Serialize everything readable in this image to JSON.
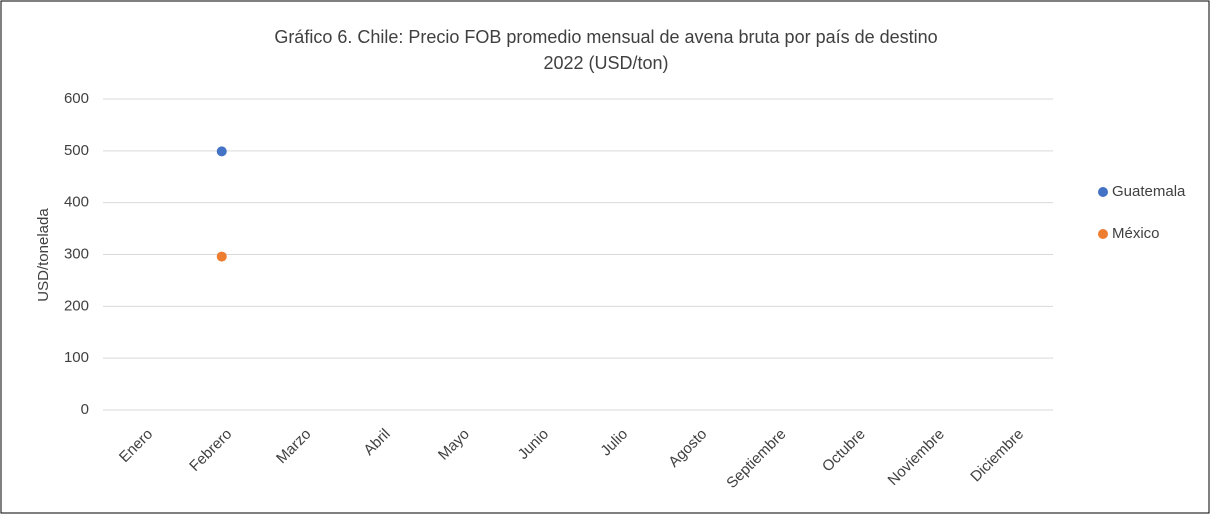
{
  "chart_data": {
    "type": "scatter",
    "title": [
      "Gráfico 6. Chile: Precio FOB promedio mensual de avena bruta por país de destino",
      "2022 (USD/ton)"
    ],
    "y_label": "USD/tonelada",
    "categories": [
      "Enero",
      "Febrero",
      "Marzo",
      "Abril",
      "Mayo",
      "Junio",
      "Julio",
      "Agosto",
      "Septiembre",
      "Octubre",
      "Noviembre",
      "Diciembre"
    ],
    "series": [
      {
        "name": "Guatemala",
        "color": "#4472c4",
        "values": [
          null,
          499,
          null,
          null,
          null,
          null,
          null,
          null,
          null,
          null,
          null,
          null
        ]
      },
      {
        "name": "México",
        "color": "#ed7d31",
        "values": [
          null,
          296,
          null,
          null,
          null,
          null,
          null,
          null,
          null,
          null,
          null,
          null
        ]
      }
    ],
    "ylim": [
      0,
      600
    ],
    "yticks": [
      0,
      100,
      200,
      300,
      400,
      500,
      600
    ],
    "grid": true,
    "legend": "right"
  }
}
